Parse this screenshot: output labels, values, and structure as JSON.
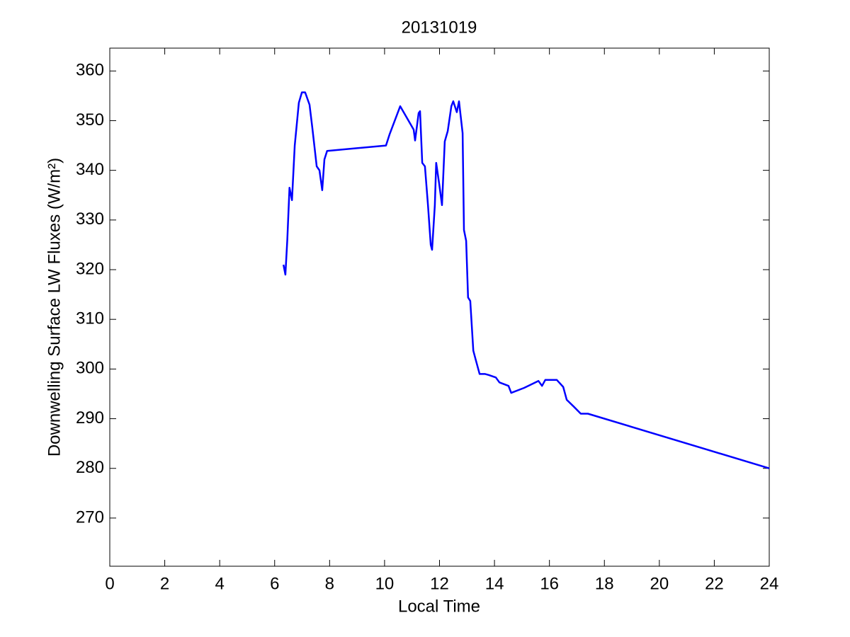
{
  "chart_data": {
    "type": "line",
    "title": "20131019",
    "x_label": "Local Time",
    "y_label": "Downwelling Surface LW Fluxes (W/m²)",
    "xlim": [
      0,
      24
    ],
    "xticks": [
      0,
      2,
      4,
      6,
      8,
      10,
      12,
      14,
      16,
      18,
      20,
      22,
      24
    ],
    "ylim": [
      260.3,
      364.6
    ],
    "yticks": [
      270,
      280,
      290,
      300,
      310,
      320,
      330,
      340,
      350,
      360
    ],
    "grid": false,
    "series": [
      {
        "color": "#0000ff",
        "x": [
          6.32,
          6.39,
          6.46,
          6.54,
          6.63,
          6.73,
          6.88,
          6.99,
          7.11,
          7.27,
          7.37,
          7.53,
          7.63,
          7.73,
          7.81,
          7.91,
          10.05,
          10.18,
          10.57,
          11.06,
          11.11,
          11.24,
          11.29,
          11.37,
          11.47,
          11.58,
          11.68,
          11.73,
          11.83,
          11.88,
          11.99,
          12.09,
          12.19,
          12.3,
          12.43,
          12.5,
          12.63,
          12.71,
          12.84,
          12.89,
          12.97,
          13.04,
          13.12,
          13.23,
          13.33,
          13.46,
          13.66,
          13.79,
          14.05,
          14.18,
          14.51,
          14.61,
          15.08,
          15.6,
          15.73,
          15.85,
          16.27,
          16.5,
          16.63,
          16.89,
          17.14,
          17.4,
          24
        ],
        "values": [
          321,
          319,
          326,
          336.5,
          334,
          345,
          353.6,
          355.7,
          355.7,
          353.2,
          348.6,
          340.8,
          340,
          336,
          342.2,
          343.9,
          345,
          347.2,
          352.9,
          348.2,
          346,
          351.5,
          351.9,
          341.5,
          340.8,
          333,
          325,
          324,
          333,
          341.5,
          337.2,
          333,
          345.8,
          347.9,
          352.9,
          353.9,
          351.7,
          353.9,
          347.5,
          328,
          325.8,
          314.4,
          313.7,
          303.7,
          301.6,
          299,
          299,
          298.8,
          298.3,
          297.3,
          296.6,
          295.2,
          296.2,
          297.6,
          296.6,
          297.8,
          297.8,
          296.4,
          293.8,
          292.4,
          291,
          291,
          280
        ]
      }
    ]
  }
}
